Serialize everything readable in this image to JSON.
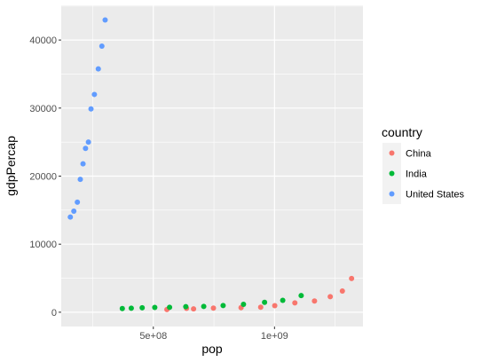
{
  "chart_data": {
    "type": "scatter",
    "xlabel": "pop",
    "ylabel": "gdpPercap",
    "xlim": [
      120000000,
      1365000000
    ],
    "ylim": [
      -2100,
      45100
    ],
    "x_ticks": [
      {
        "value": 500000000,
        "label": "5e+08"
      },
      {
        "value": 1000000000,
        "label": "1e+09"
      }
    ],
    "y_ticks": [
      {
        "value": 0,
        "label": "0"
      },
      {
        "value": 10000,
        "label": "10000"
      },
      {
        "value": 20000,
        "label": "20000"
      },
      {
        "value": 30000,
        "label": "30000"
      },
      {
        "value": 40000,
        "label": "40000"
      }
    ],
    "grid": true,
    "legend": {
      "title": "country",
      "placement": "right",
      "entries": [
        {
          "name": "China",
          "color": "#F8766D"
        },
        {
          "name": "India",
          "color": "#00BA38"
        },
        {
          "name": "United States",
          "color": "#619CFF"
        }
      ]
    },
    "series": [
      {
        "name": "China",
        "color": "#F8766D",
        "points": [
          {
            "x": 556000000,
            "y": 400
          },
          {
            "x": 637000000,
            "y": 576
          },
          {
            "x": 666000000,
            "y": 488
          },
          {
            "x": 748000000,
            "y": 613
          },
          {
            "x": 862000000,
            "y": 677
          },
          {
            "x": 943000000,
            "y": 741
          },
          {
            "x": 1001000000,
            "y": 962
          },
          {
            "x": 1084000000,
            "y": 1378
          },
          {
            "x": 1165000000,
            "y": 1656
          },
          {
            "x": 1230000000,
            "y": 2289
          },
          {
            "x": 1280000000,
            "y": 3119
          },
          {
            "x": 1318000000,
            "y": 4959
          }
        ]
      },
      {
        "name": "India",
        "color": "#00BA38",
        "points": [
          {
            "x": 372000000,
            "y": 547
          },
          {
            "x": 409000000,
            "y": 590
          },
          {
            "x": 454000000,
            "y": 658
          },
          {
            "x": 506000000,
            "y": 700
          },
          {
            "x": 567000000,
            "y": 724
          },
          {
            "x": 634000000,
            "y": 813
          },
          {
            "x": 708000000,
            "y": 856
          },
          {
            "x": 788000000,
            "y": 976
          },
          {
            "x": 872000000,
            "y": 1164
          },
          {
            "x": 959000000,
            "y": 1458
          },
          {
            "x": 1034000000,
            "y": 1747
          },
          {
            "x": 1110000000,
            "y": 2452
          }
        ]
      },
      {
        "name": "United States",
        "color": "#619CFF",
        "points": [
          {
            "x": 157550000,
            "y": 13990
          },
          {
            "x": 171980000,
            "y": 14847
          },
          {
            "x": 186540000,
            "y": 16173
          },
          {
            "x": 198710000,
            "y": 19530
          },
          {
            "x": 209900000,
            "y": 21806
          },
          {
            "x": 220240000,
            "y": 24073
          },
          {
            "x": 232190000,
            "y": 25010
          },
          {
            "x": 242800000,
            "y": 29884
          },
          {
            "x": 256890000,
            "y": 32004
          },
          {
            "x": 272910000,
            "y": 35767
          },
          {
            "x": 287680000,
            "y": 39097
          },
          {
            "x": 301140000,
            "y": 42952
          }
        ]
      }
    ]
  }
}
